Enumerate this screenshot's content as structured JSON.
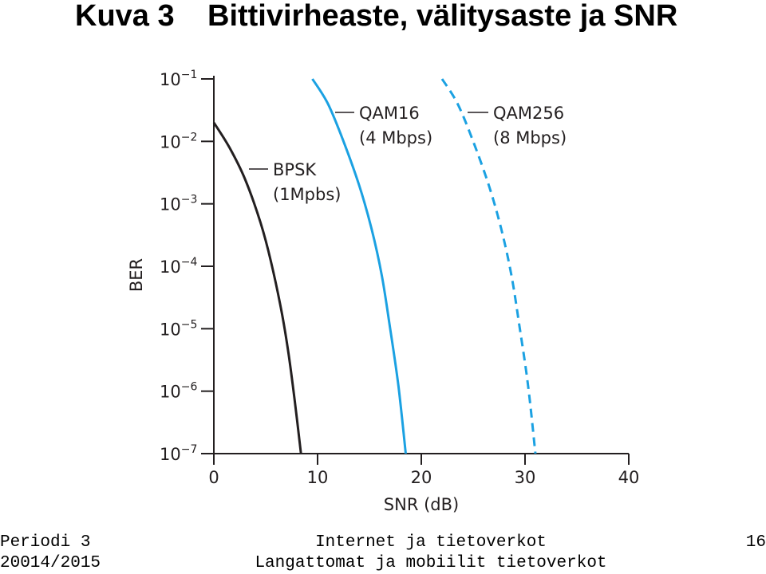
{
  "header": {
    "label": "Kuva 3",
    "title": "Bittivirheaste, välitysaste ja SNR"
  },
  "chart_data": {
    "type": "line",
    "title": "",
    "xlabel": "SNR (dB)",
    "ylabel": "BER",
    "xlim": [
      0,
      40
    ],
    "ylim": [
      1e-07,
      0.1
    ],
    "y_scale": "log",
    "x_ticks": [
      "0",
      "10",
      "20",
      "30",
      "40"
    ],
    "y_ticks": [
      {
        "base": "10",
        "exp": "−1",
        "value": 0.1
      },
      {
        "base": "10",
        "exp": "−2",
        "value": 0.01
      },
      {
        "base": "10",
        "exp": "−3",
        "value": 0.001
      },
      {
        "base": "10",
        "exp": "−4",
        "value": 0.0001
      },
      {
        "base": "10",
        "exp": "−5",
        "value": 1e-05
      },
      {
        "base": "10",
        "exp": "−6",
        "value": 1e-06
      },
      {
        "base": "10",
        "exp": "−7",
        "value": 1e-07
      }
    ],
    "grid": false,
    "series": [
      {
        "label_lines": [
          "BPSK",
          "(1Mpbs)"
        ],
        "color": "#231f20",
        "dashed": false,
        "x": [
          0,
          1.5,
          3,
          4.5,
          5.5,
          6.5,
          7.2,
          7.8,
          8.4
        ],
        "y": [
          0.02,
          0.008,
          0.0025,
          0.0005,
          0.00012,
          2e-05,
          4e-06,
          7e-07,
          1e-07
        ]
      },
      {
        "label_lines": [
          "QAM16",
          "(4 Mbps)"
        ],
        "color": "#1ba1e2",
        "dashed": false,
        "x": [
          9.5,
          11,
          12.5,
          14,
          15.2,
          16.2,
          17,
          17.8,
          18.5
        ],
        "y": [
          0.1,
          0.04,
          0.01,
          0.002,
          0.0004,
          7e-05,
          1e-05,
          1.2e-06,
          1e-07
        ]
      },
      {
        "label_lines": [
          "QAM256",
          "(8 Mbps)"
        ],
        "color": "#1ba1e2",
        "dashed": true,
        "x": [
          22,
          23.5,
          25,
          26.5,
          27.7,
          28.7,
          29.5,
          30.3,
          31
        ],
        "y": [
          0.1,
          0.04,
          0.01,
          0.002,
          0.0004,
          7e-05,
          1e-05,
          1.2e-06,
          1e-07
        ]
      }
    ]
  },
  "footer": {
    "left_line1": "Periodi 3",
    "left_line2": "20014/2015",
    "center_line1": "Internet ja tietoverkot",
    "center_line2": "Langattomat ja mobiilit tietoverkot",
    "page_number": "16"
  }
}
